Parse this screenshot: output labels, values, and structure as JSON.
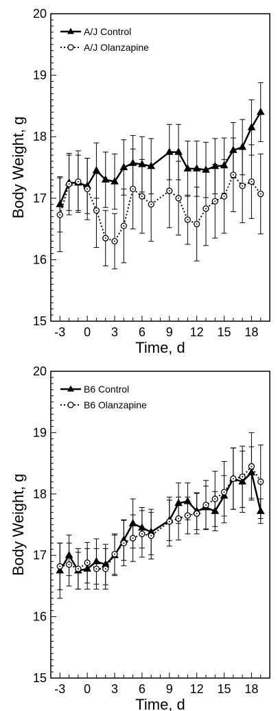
{
  "chart_data": [
    {
      "type": "line",
      "x": [
        -3,
        -2,
        -1,
        0,
        1,
        2,
        3,
        4,
        5,
        6,
        7,
        9,
        10,
        11,
        12,
        13,
        14,
        15,
        16,
        17,
        18,
        19
      ],
      "series": [
        {
          "name": "A/J Control",
          "values": [
            16.9,
            17.25,
            17.25,
            17.2,
            17.45,
            17.3,
            17.27,
            17.5,
            17.57,
            17.55,
            17.52,
            17.75,
            17.75,
            17.48,
            17.48,
            17.46,
            17.52,
            17.53,
            17.78,
            17.83,
            18.15,
            18.4
          ],
          "error": [
            0.45,
            0.45,
            0.45,
            0.45,
            0.45,
            0.45,
            0.45,
            0.45,
            0.45,
            0.45,
            0.45,
            0.45,
            0.45,
            0.45,
            0.45,
            0.45,
            0.45,
            0.45,
            0.45,
            0.45,
            0.45,
            0.48
          ],
          "marker": "triangle",
          "line_style": "solid"
        },
        {
          "name": "A/J  Olanzapine",
          "values": [
            16.73,
            17.23,
            17.27,
            17.15,
            16.8,
            16.35,
            16.3,
            16.55,
            17.15,
            17.03,
            16.9,
            17.12,
            17.0,
            16.65,
            16.58,
            16.83,
            16.95,
            17.03,
            17.38,
            17.2,
            17.27,
            17.07
          ],
          "error": [
            0.6,
            0.5,
            0.5,
            0.5,
            0.6,
            0.45,
            0.45,
            0.6,
            0.65,
            0.6,
            0.6,
            0.6,
            0.6,
            0.4,
            0.6,
            0.6,
            0.6,
            0.6,
            0.6,
            0.6,
            0.6,
            0.65
          ],
          "marker": "open-circle",
          "line_style": "dotted"
        }
      ],
      "xlabel": "Time, d",
      "ylabel": "Body Weight, g",
      "xlim": [
        -4,
        20
      ],
      "ylim": [
        15,
        20
      ],
      "xticks": [
        -3,
        0,
        3,
        6,
        9,
        12,
        15,
        18
      ],
      "yticks": [
        15,
        16,
        17,
        18,
        19,
        20
      ],
      "grid": false,
      "legend": "top-left"
    },
    {
      "type": "line",
      "x": [
        -3,
        -2,
        -1,
        0,
        1,
        2,
        3,
        4,
        5,
        6,
        7,
        9,
        10,
        11,
        12,
        13,
        14,
        15,
        16,
        17,
        18,
        19
      ],
      "series": [
        {
          "name": "B6 Control",
          "values": [
            16.75,
            17.0,
            16.75,
            16.78,
            16.9,
            16.85,
            17.0,
            17.25,
            17.52,
            17.45,
            17.38,
            17.57,
            17.85,
            17.88,
            17.72,
            17.78,
            17.72,
            17.97,
            18.25,
            18.2,
            18.35,
            17.72
          ],
          "error": [
            0.45,
            0.33,
            0.3,
            0.33,
            0.37,
            0.33,
            0.33,
            0.33,
            0.4,
            0.33,
            0.37,
            0.33,
            0.33,
            0.3,
            0.3,
            0.35,
            0.32,
            0.33,
            0.5,
            0.5,
            0.42,
            0.2
          ],
          "marker": "triangle",
          "line_style": "solid"
        },
        {
          "name": "B6 Olanzapine",
          "values": [
            16.82,
            16.85,
            16.78,
            16.88,
            16.78,
            16.78,
            17.02,
            17.2,
            17.28,
            17.35,
            17.32,
            17.55,
            17.6,
            17.65,
            17.68,
            17.82,
            17.92,
            18.03,
            18.25,
            18.28,
            18.45,
            18.2
          ],
          "error": [
            0.38,
            0.35,
            0.33,
            0.33,
            0.33,
            0.33,
            0.33,
            0.37,
            0.38,
            0.38,
            0.38,
            0.4,
            0.35,
            0.3,
            0.33,
            0.4,
            0.45,
            0.5,
            0.5,
            0.5,
            0.55,
            0.6
          ],
          "marker": "open-circle",
          "line_style": "dotted"
        }
      ],
      "xlabel": "Time, d",
      "ylabel": "Body Weight, g",
      "xlim": [
        -4,
        20
      ],
      "ylim": [
        15,
        20
      ],
      "xticks": [
        -3,
        0,
        3,
        6,
        9,
        12,
        15,
        18
      ],
      "yticks": [
        15,
        16,
        17,
        18,
        19,
        20
      ],
      "grid": false,
      "legend": "top-left"
    }
  ]
}
